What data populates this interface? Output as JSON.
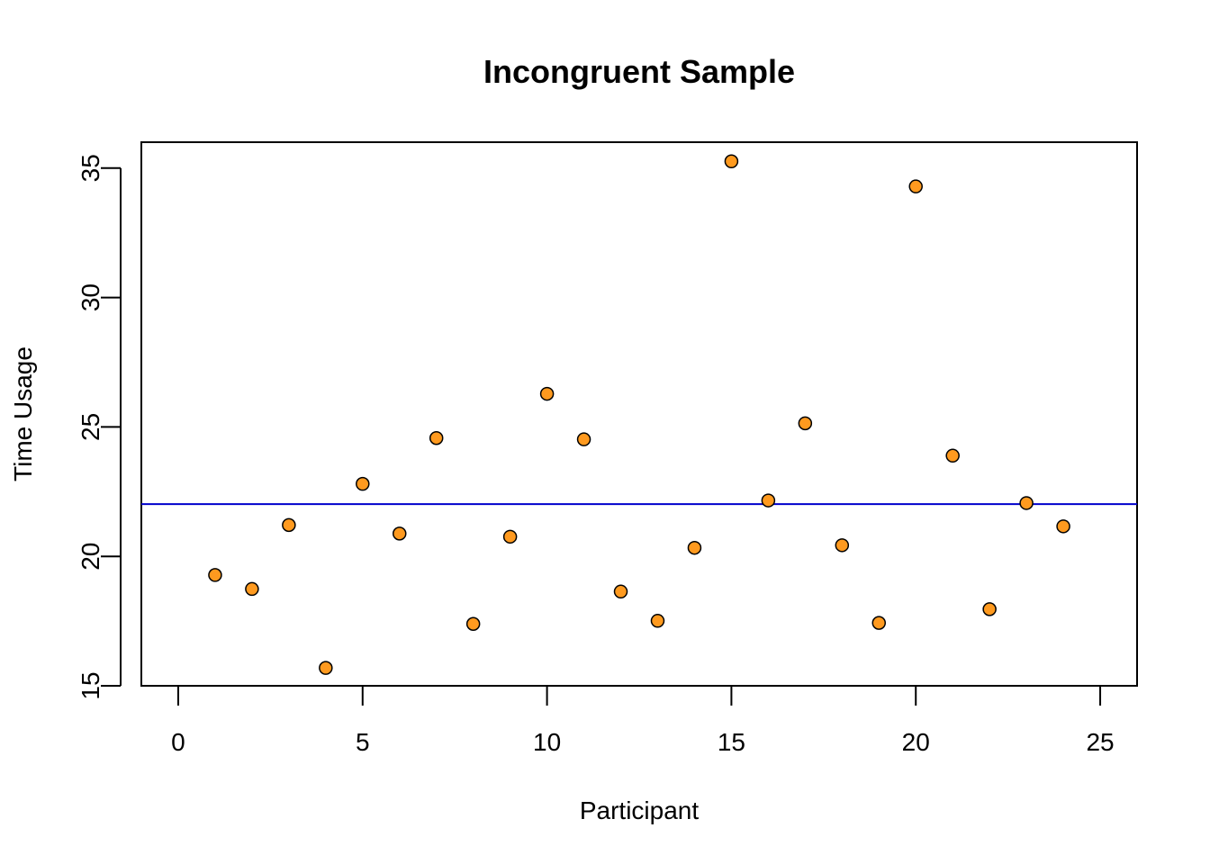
{
  "chart_data": {
    "type": "scatter",
    "title": "Incongruent Sample",
    "xlabel": "Participant",
    "ylabel": "Time Usage",
    "xlim": [
      -1,
      26
    ],
    "ylim": [
      15,
      36
    ],
    "x_ticks": [
      0,
      5,
      10,
      15,
      20,
      25
    ],
    "y_ticks": [
      15,
      20,
      25,
      30,
      35
    ],
    "x_tick_labels": [
      "0",
      "5",
      "10",
      "15",
      "20",
      "25"
    ],
    "y_tick_labels": [
      "15",
      "20",
      "25",
      "30",
      "35"
    ],
    "grid": false,
    "legend": "none",
    "point_fill": "#FF9A1F",
    "point_stroke": "#000000",
    "reference_line": {
      "y": 22.02,
      "color": "#0000CC"
    },
    "series": [
      {
        "x": [
          1,
          2,
          3,
          4,
          5,
          6,
          7,
          8,
          9,
          10,
          11,
          12,
          13,
          14,
          15,
          16,
          17,
          18,
          19,
          20,
          21,
          22,
          23,
          24
        ],
        "y": [
          19.28,
          18.74,
          21.21,
          15.69,
          22.8,
          20.88,
          24.57,
          17.39,
          20.76,
          26.28,
          24.52,
          18.64,
          17.51,
          20.33,
          35.26,
          22.16,
          25.14,
          20.43,
          17.43,
          34.29,
          23.89,
          17.96,
          22.06,
          21.16
        ]
      }
    ]
  }
}
